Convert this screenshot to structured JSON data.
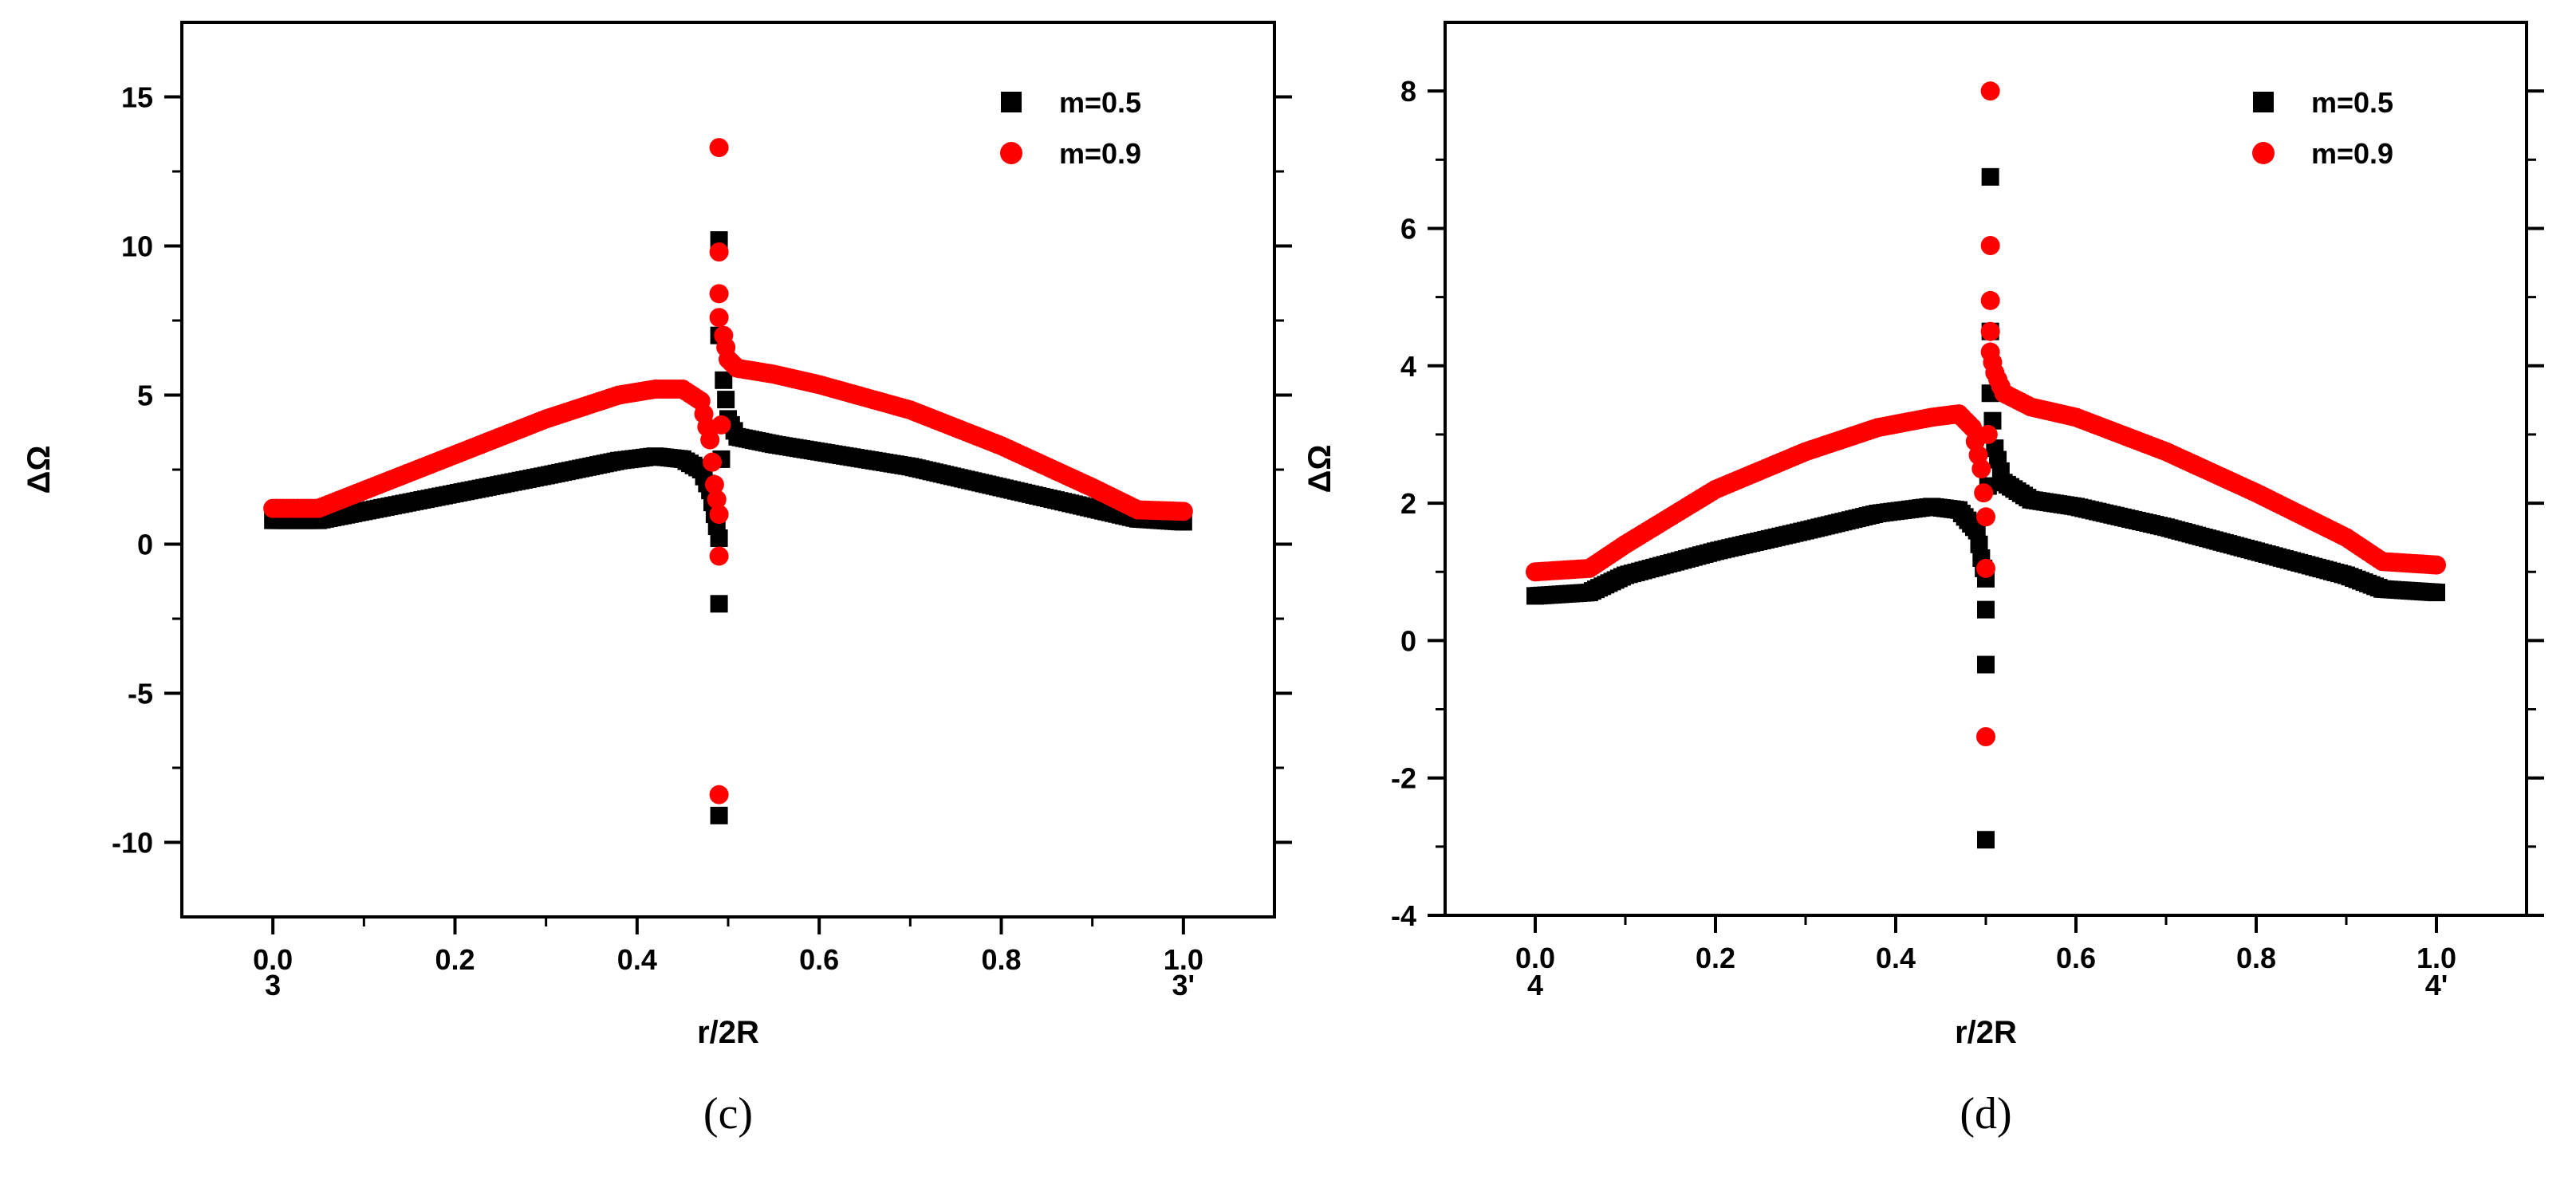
{
  "chart_data": [
    {
      "type": "scatter",
      "id": "c",
      "caption": "(c)",
      "xlabel": "r/2R",
      "ylabel": "ΔΩ",
      "xlim": [
        -0.1,
        1.1
      ],
      "ylim": [
        -12.5,
        17.5
      ],
      "xticks": [
        0.0,
        0.2,
        0.4,
        0.6,
        0.8,
        1.0
      ],
      "xtick_labels": [
        "0.0",
        "0.2",
        "0.4",
        "0.6",
        "0.8",
        "1.0"
      ],
      "yticks": [
        -10,
        -5,
        0,
        5,
        10,
        15
      ],
      "ytick_labels": [
        "-10",
        "-5",
        "0",
        "5",
        "10",
        "15"
      ],
      "point_labels": [
        {
          "x": 0.0,
          "text": "3"
        },
        {
          "x": 1.0,
          "text": "3'"
        }
      ],
      "legend": {
        "position": "top-right",
        "entries": [
          "m=0.5",
          "m=0.9"
        ]
      },
      "singularity_x": 0.49,
      "series": [
        {
          "name": "m=0.5",
          "marker": "square",
          "color": "#000000",
          "curve": [
            [
              0.0,
              0.8
            ],
            [
              0.05,
              0.8
            ],
            [
              0.1,
              1.1
            ],
            [
              0.2,
              1.7
            ],
            [
              0.3,
              2.3
            ],
            [
              0.38,
              2.8
            ],
            [
              0.42,
              2.95
            ],
            [
              0.45,
              2.85
            ],
            [
              0.47,
              2.5
            ],
            [
              0.48,
              1.8
            ],
            [
              0.485,
              1.0
            ],
            [
              0.49,
              0.2
            ],
            [
              0.495,
              5.5
            ],
            [
              0.5,
              4.2
            ],
            [
              0.51,
              3.6
            ],
            [
              0.55,
              3.35
            ],
            [
              0.6,
              3.1
            ],
            [
              0.7,
              2.6
            ],
            [
              0.8,
              1.9
            ],
            [
              0.9,
              1.2
            ],
            [
              0.95,
              0.85
            ],
            [
              1.0,
              0.75
            ]
          ],
          "outliers": [
            [
              0.49,
              -2.0
            ],
            [
              0.49,
              -9.1
            ],
            [
              0.49,
              10.2
            ],
            [
              0.49,
              7.0
            ]
          ]
        },
        {
          "name": "m=0.9",
          "marker": "circle",
          "color": "#ff0000",
          "curve": [
            [
              0.0,
              1.2
            ],
            [
              0.05,
              1.2
            ],
            [
              0.1,
              1.8
            ],
            [
              0.2,
              3.0
            ],
            [
              0.3,
              4.2
            ],
            [
              0.38,
              5.0
            ],
            [
              0.42,
              5.2
            ],
            [
              0.45,
              5.2
            ],
            [
              0.47,
              4.8
            ],
            [
              0.48,
              3.5
            ],
            [
              0.485,
              2.0
            ],
            [
              0.49,
              1.0
            ],
            [
              0.495,
              7.0
            ],
            [
              0.5,
              6.2
            ],
            [
              0.51,
              5.9
            ],
            [
              0.55,
              5.7
            ],
            [
              0.6,
              5.35
            ],
            [
              0.7,
              4.5
            ],
            [
              0.8,
              3.3
            ],
            [
              0.9,
              1.9
            ],
            [
              0.95,
              1.15
            ],
            [
              1.0,
              1.1
            ]
          ],
          "outliers": [
            [
              0.49,
              -0.4
            ],
            [
              0.49,
              -8.4
            ],
            [
              0.49,
              13.3
            ],
            [
              0.49,
              9.8
            ],
            [
              0.49,
              8.4
            ],
            [
              0.49,
              7.6
            ]
          ]
        }
      ]
    },
    {
      "type": "scatter",
      "id": "d",
      "caption": "(d)",
      "xlabel": "r/2R",
      "ylabel": "ΔΩ",
      "xlim": [
        -0.1,
        1.1
      ],
      "ylim": [
        -4,
        9
      ],
      "xticks": [
        0.0,
        0.2,
        0.4,
        0.6,
        0.8,
        1.0
      ],
      "xtick_labels": [
        "0.0",
        "0.2",
        "0.4",
        "0.6",
        "0.8",
        "1.0"
      ],
      "yticks": [
        -4,
        -2,
        0,
        2,
        4,
        6,
        8
      ],
      "ytick_labels": [
        "-4",
        "-2",
        "0",
        "2",
        "4",
        "6",
        "8"
      ],
      "point_labels": [
        {
          "x": 0.0,
          "text": "4"
        },
        {
          "x": 1.0,
          "text": "4'"
        }
      ],
      "legend": {
        "position": "top-right",
        "entries": [
          "m=0.5",
          "m=0.9"
        ]
      },
      "singularity_x": 0.5,
      "series": [
        {
          "name": "m=0.5",
          "marker": "square",
          "color": "#000000",
          "curve": [
            [
              0.0,
              0.65
            ],
            [
              0.06,
              0.7
            ],
            [
              0.1,
              0.95
            ],
            [
              0.2,
              1.3
            ],
            [
              0.3,
              1.6
            ],
            [
              0.38,
              1.85
            ],
            [
              0.44,
              1.95
            ],
            [
              0.47,
              1.9
            ],
            [
              0.49,
              1.6
            ],
            [
              0.495,
              1.2
            ],
            [
              0.5,
              0.9
            ],
            [
              0.505,
              3.6
            ],
            [
              0.51,
              2.8
            ],
            [
              0.52,
              2.3
            ],
            [
              0.55,
              2.05
            ],
            [
              0.6,
              1.95
            ],
            [
              0.7,
              1.65
            ],
            [
              0.8,
              1.3
            ],
            [
              0.9,
              0.95
            ],
            [
              0.94,
              0.75
            ],
            [
              1.0,
              0.7
            ]
          ],
          "outliers": [
            [
              0.5,
              0.45
            ],
            [
              0.5,
              -0.35
            ],
            [
              0.5,
              -2.9
            ],
            [
              0.505,
              6.75
            ],
            [
              0.505,
              4.5
            ]
          ]
        },
        {
          "name": "m=0.9",
          "marker": "circle",
          "color": "#ff0000",
          "curve": [
            [
              0.0,
              1.0
            ],
            [
              0.06,
              1.05
            ],
            [
              0.1,
              1.4
            ],
            [
              0.2,
              2.2
            ],
            [
              0.3,
              2.75
            ],
            [
              0.38,
              3.1
            ],
            [
              0.44,
              3.25
            ],
            [
              0.47,
              3.3
            ],
            [
              0.485,
              3.1
            ],
            [
              0.495,
              2.5
            ],
            [
              0.5,
              1.8
            ],
            [
              0.505,
              4.2
            ],
            [
              0.51,
              3.9
            ],
            [
              0.52,
              3.6
            ],
            [
              0.55,
              3.4
            ],
            [
              0.6,
              3.25
            ],
            [
              0.7,
              2.75
            ],
            [
              0.8,
              2.15
            ],
            [
              0.9,
              1.5
            ],
            [
              0.94,
              1.15
            ],
            [
              1.0,
              1.1
            ]
          ],
          "outliers": [
            [
              0.5,
              1.05
            ],
            [
              0.5,
              -1.4
            ],
            [
              0.505,
              8.0
            ],
            [
              0.505,
              5.75
            ],
            [
              0.505,
              4.95
            ],
            [
              0.505,
              4.5
            ]
          ]
        }
      ]
    }
  ]
}
